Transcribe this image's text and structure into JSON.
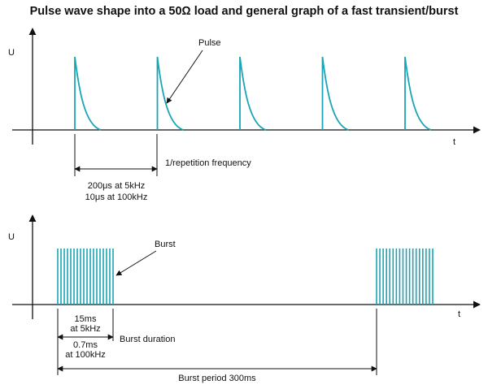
{
  "title": "Pulse wave shape into a 50Ω load and general graph of a fast transient/burst",
  "top": {
    "y_label": "U",
    "x_label": "t",
    "pulse_label": "Pulse",
    "repetition_label": "1/repetition frequency",
    "period_line1": "200μs at 5kHz",
    "period_line2": "10μs at 100kHz",
    "pulse_count": 5
  },
  "bottom": {
    "y_label": "U",
    "x_label": "t",
    "burst_label": "Burst",
    "duration_15": "15ms",
    "duration_15_sub": "at 5kHz",
    "duration_07": "0.7ms",
    "duration_07_sub": "at 100kHz",
    "burst_duration_label": "Burst duration",
    "burst_period_label": "Burst period 300ms"
  },
  "colors": {
    "waveform": "#1aa5b5",
    "ink": "#111111"
  }
}
